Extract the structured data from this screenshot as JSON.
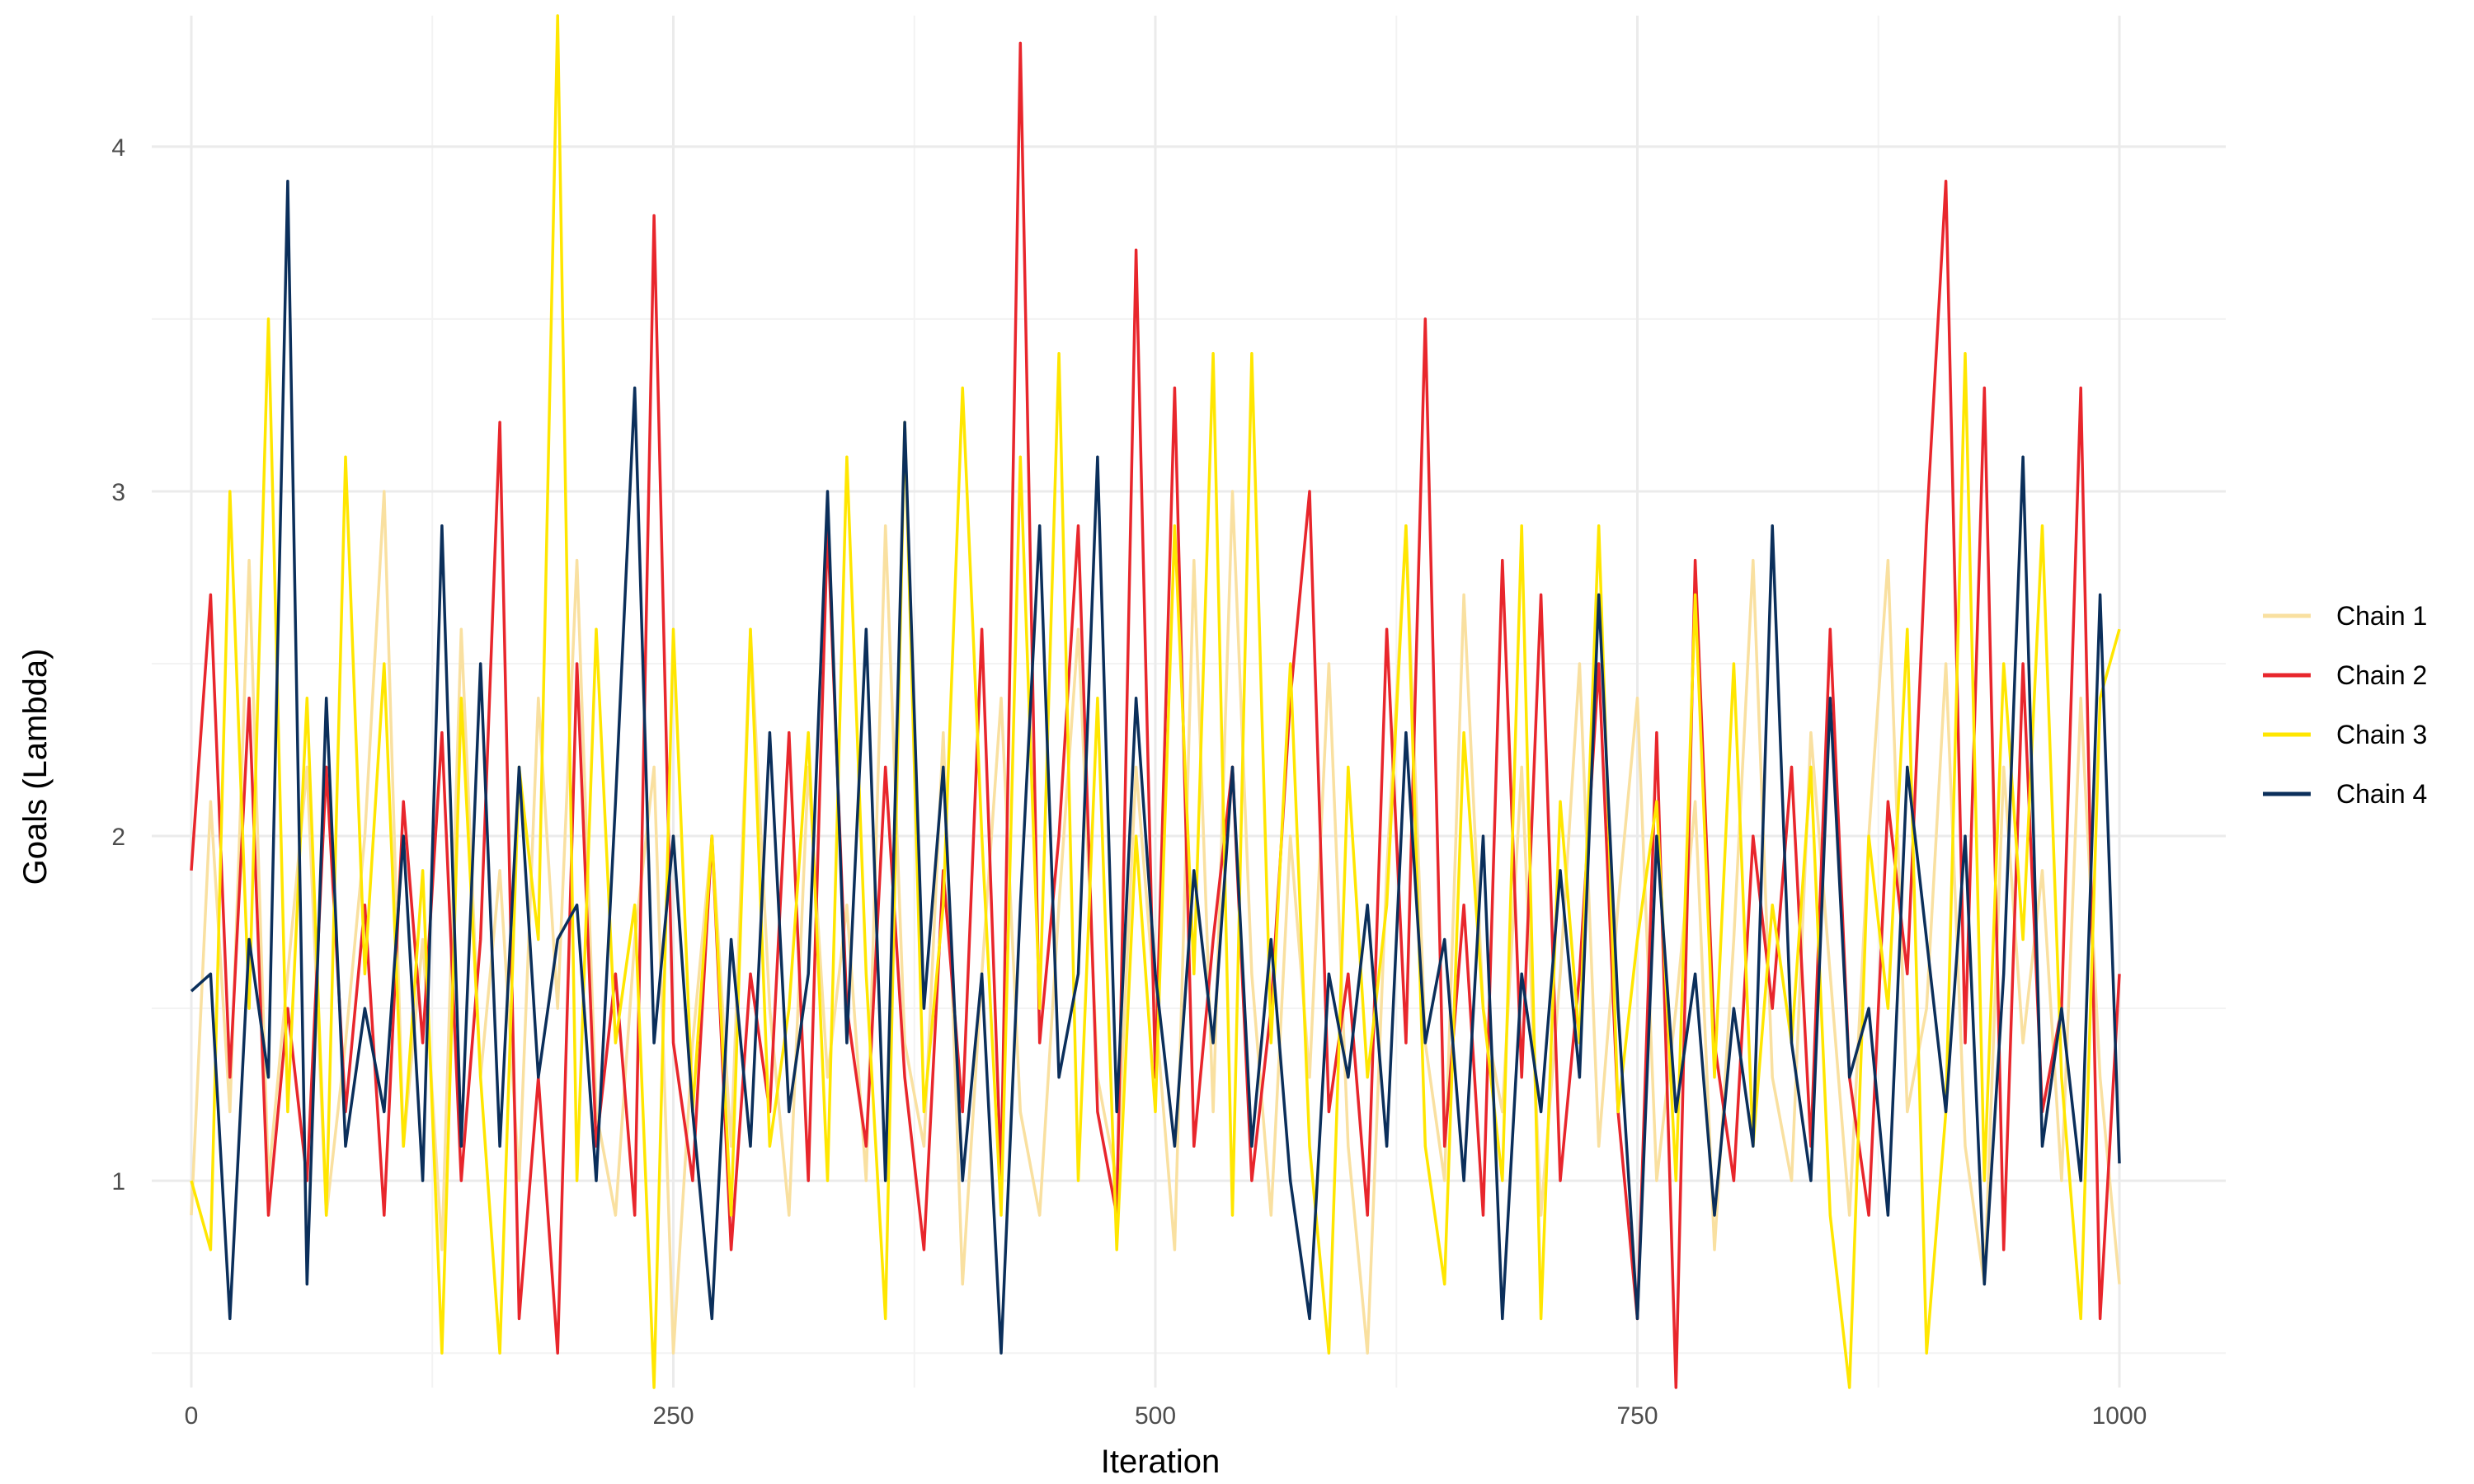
{
  "chart_data": {
    "type": "line",
    "title": "",
    "xlabel": "Iteration",
    "ylabel": "Goals (Lambda)",
    "xlim": [
      0,
      1000
    ],
    "ylim": [
      0.4,
      4.38
    ],
    "xticks": [
      0,
      250,
      500,
      750,
      1000
    ],
    "xtick_labels": [
      "0",
      "250",
      "500",
      "750",
      "1000"
    ],
    "yticks": [
      1,
      2,
      3,
      4
    ],
    "ytick_labels": [
      "1",
      "2",
      "3",
      "4"
    ],
    "grid": true,
    "legend_position": "right",
    "x": [
      0,
      10,
      20,
      30,
      40,
      50,
      60,
      70,
      80,
      90,
      100,
      110,
      120,
      130,
      140,
      150,
      160,
      170,
      180,
      190,
      200,
      210,
      220,
      230,
      240,
      250,
      260,
      270,
      280,
      290,
      300,
      310,
      320,
      330,
      340,
      350,
      360,
      370,
      380,
      390,
      400,
      410,
      420,
      430,
      440,
      450,
      460,
      470,
      480,
      490,
      500,
      510,
      520,
      530,
      540,
      550,
      560,
      570,
      580,
      590,
      600,
      610,
      620,
      630,
      640,
      650,
      660,
      670,
      680,
      690,
      700,
      710,
      720,
      730,
      740,
      750,
      760,
      770,
      780,
      790,
      800,
      810,
      820,
      830,
      840,
      850,
      860,
      870,
      880,
      890,
      900,
      910,
      920,
      930,
      940,
      950,
      960,
      970,
      980,
      990,
      1000
    ],
    "series": [
      {
        "name": "Chain 1",
        "color": "#F9E0A0",
        "values": [
          0.9,
          2.1,
          1.2,
          2.8,
          1.0,
          1.6,
          2.2,
          0.9,
          1.4,
          2.0,
          3.0,
          1.1,
          1.7,
          0.8,
          2.6,
          1.3,
          1.9,
          1.0,
          2.4,
          1.5,
          2.8,
          1.2,
          0.9,
          1.7,
          2.2,
          0.5,
          1.4,
          2.0,
          1.1,
          2.6,
          1.5,
          0.9,
          2.2,
          1.3,
          1.8,
          1.0,
          2.9,
          1.4,
          1.1,
          2.3,
          0.7,
          1.6,
          2.4,
          1.2,
          0.9,
          1.8,
          2.6,
          1.3,
          1.0,
          2.2,
          1.5,
          0.8,
          2.8,
          1.2,
          3.0,
          1.6,
          0.9,
          2.0,
          1.3,
          2.5,
          1.1,
          0.5,
          1.9,
          2.9,
          1.4,
          1.0,
          2.7,
          1.5,
          1.2,
          2.2,
          0.9,
          1.6,
          2.5,
          1.1,
          1.8,
          2.4,
          1.0,
          1.5,
          2.1,
          0.8,
          1.7,
          2.8,
          1.3,
          1.0,
          2.3,
          1.6,
          0.9,
          2.0,
          2.8,
          1.2,
          1.5,
          2.5,
          1.1,
          0.7,
          2.2,
          1.4,
          1.9,
          1.0,
          2.4,
          1.3,
          0.7
        ]
      },
      {
        "name": "Chain 2",
        "color": "#E8262C",
        "values": [
          1.9,
          2.7,
          1.3,
          2.4,
          0.9,
          1.5,
          1.0,
          2.2,
          1.2,
          1.8,
          0.9,
          2.1,
          1.4,
          2.3,
          1.0,
          1.7,
          3.2,
          0.6,
          1.3,
          0.5,
          2.5,
          1.1,
          1.6,
          0.9,
          3.8,
          1.4,
          1.0,
          2.0,
          0.8,
          1.6,
          1.2,
          2.3,
          1.0,
          2.9,
          1.5,
          1.1,
          2.2,
          1.3,
          0.8,
          1.9,
          1.2,
          2.6,
          1.0,
          4.3,
          1.4,
          2.0,
          2.9,
          1.2,
          0.9,
          3.7,
          1.3,
          3.3,
          1.1,
          1.7,
          2.2,
          1.0,
          1.5,
          2.4,
          3.0,
          1.2,
          1.6,
          0.9,
          2.6,
          1.4,
          3.5,
          1.1,
          1.8,
          0.9,
          2.8,
          1.3,
          2.7,
          1.0,
          1.6,
          2.5,
          1.2,
          0.6,
          2.3,
          0.4,
          2.8,
          1.4,
          1.0,
          2.0,
          1.5,
          2.2,
          1.1,
          2.6,
          1.3,
          0.9,
          2.1,
          1.6,
          2.9,
          3.9,
          1.4,
          3.3,
          0.8,
          2.5,
          1.2,
          1.5,
          3.3,
          0.6,
          1.6
        ]
      },
      {
        "name": "Chain 3",
        "color": "#FFE600",
        "values": [
          1.0,
          0.8,
          3.0,
          1.5,
          3.5,
          1.2,
          2.4,
          0.9,
          3.1,
          1.6,
          2.5,
          1.1,
          1.9,
          0.5,
          2.4,
          1.3,
          0.5,
          2.2,
          1.7,
          4.38,
          1.0,
          2.6,
          1.4,
          1.8,
          0.4,
          2.6,
          1.2,
          2.0,
          0.9,
          2.6,
          1.1,
          1.5,
          2.3,
          1.0,
          3.1,
          1.6,
          0.6,
          3.2,
          1.2,
          1.8,
          3.3,
          2.0,
          0.9,
          3.1,
          1.5,
          3.4,
          1.0,
          2.4,
          0.8,
          2.0,
          1.2,
          2.9,
          1.6,
          3.4,
          0.9,
          3.4,
          1.4,
          2.5,
          1.1,
          0.5,
          2.2,
          1.3,
          1.8,
          2.9,
          1.1,
          0.7,
          2.3,
          1.5,
          1.0,
          2.9,
          0.6,
          2.1,
          1.4,
          2.9,
          1.2,
          1.7,
          2.1,
          1.0,
          2.7,
          1.3,
          2.5,
          1.1,
          1.8,
          1.4,
          2.2,
          0.9,
          0.4,
          2.0,
          1.5,
          2.6,
          0.5,
          1.2,
          3.4,
          1.0,
          2.5,
          1.7,
          2.9,
          1.3,
          0.6,
          2.4,
          2.6
        ]
      },
      {
        "name": "Chain 4",
        "color": "#0B2F5B",
        "values": [
          1.55,
          1.6,
          0.6,
          1.7,
          1.3,
          3.9,
          0.7,
          2.4,
          1.1,
          1.5,
          1.2,
          2.0,
          1.0,
          2.9,
          1.1,
          2.5,
          1.1,
          2.2,
          1.3,
          1.7,
          1.8,
          1.0,
          2.1,
          3.3,
          1.4,
          2.0,
          1.2,
          0.6,
          1.7,
          1.1,
          2.3,
          1.2,
          1.6,
          3.0,
          1.4,
          2.6,
          1.0,
          3.2,
          1.5,
          2.2,
          1.0,
          1.6,
          0.5,
          1.8,
          2.9,
          1.3,
          1.6,
          3.1,
          1.2,
          2.4,
          1.6,
          1.1,
          1.9,
          1.4,
          2.2,
          1.1,
          1.7,
          1.0,
          0.6,
          1.6,
          1.3,
          1.8,
          1.1,
          2.3,
          1.4,
          1.7,
          1.0,
          2.0,
          0.6,
          1.6,
          1.2,
          1.9,
          1.3,
          2.7,
          1.5,
          0.6,
          2.0,
          1.2,
          1.6,
          0.9,
          1.5,
          1.1,
          2.9,
          1.4,
          1.0,
          2.4,
          1.3,
          1.5,
          0.9,
          2.2,
          1.7,
          1.2,
          2.0,
          0.7,
          1.6,
          3.1,
          1.1,
          1.5,
          1.0,
          2.7,
          1.05
        ]
      }
    ]
  }
}
